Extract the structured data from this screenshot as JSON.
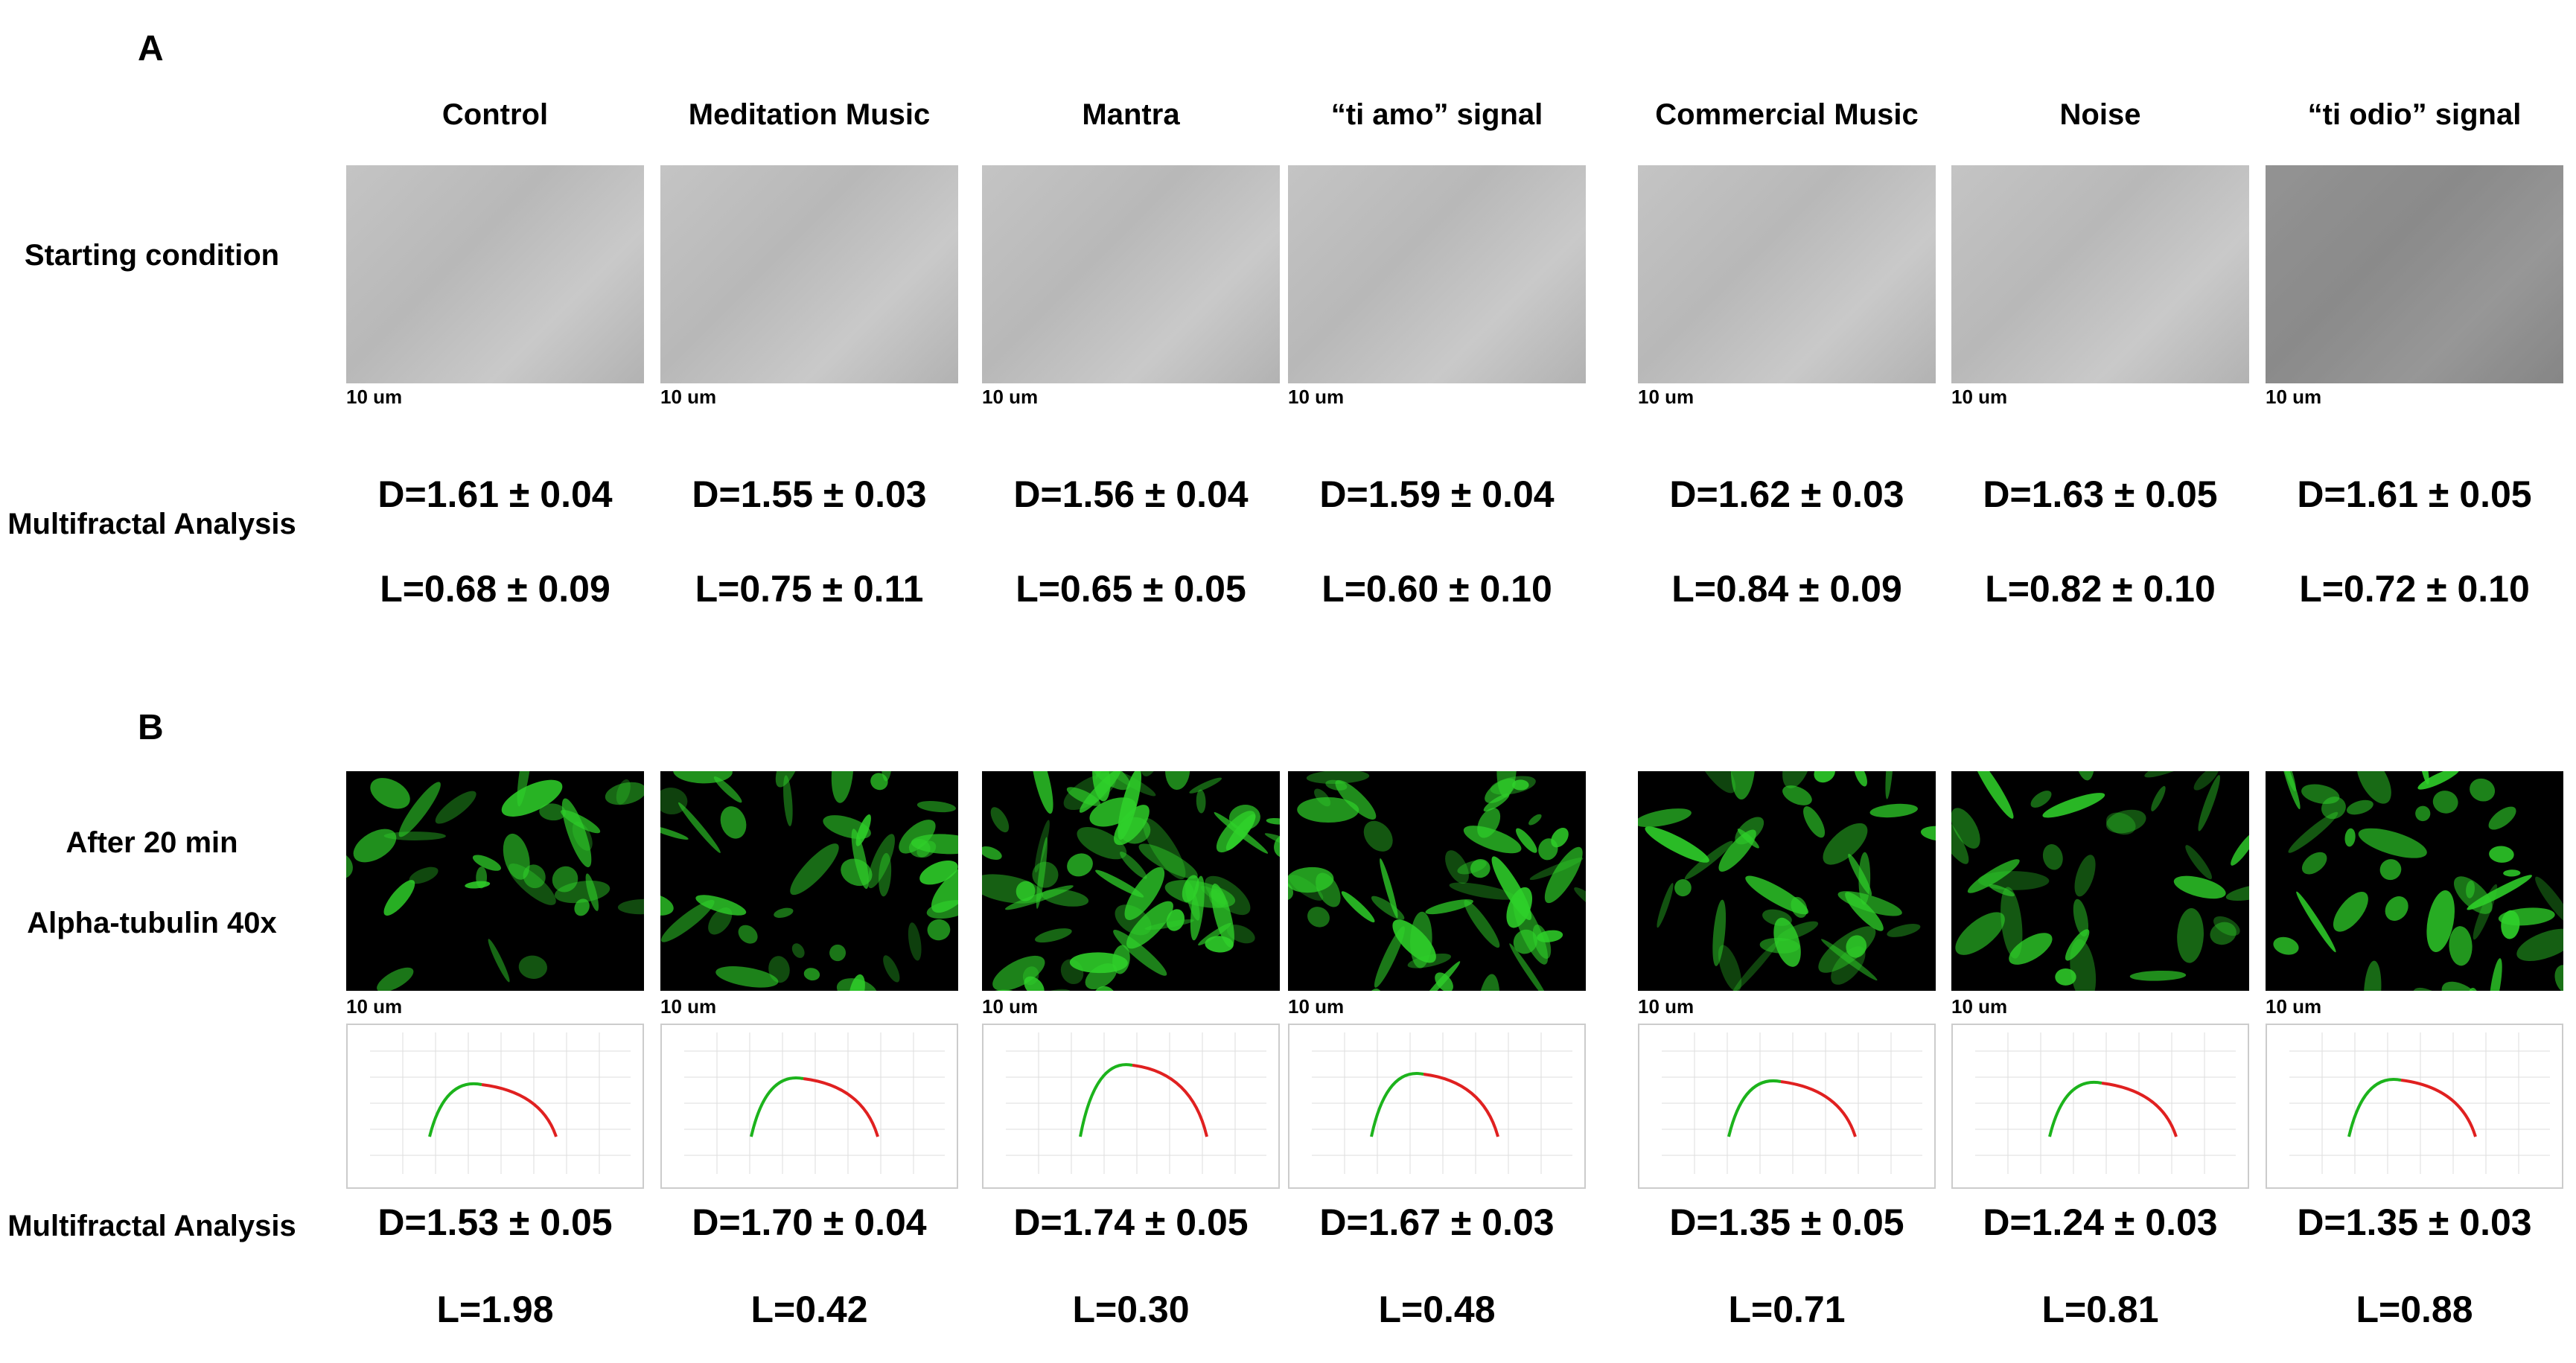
{
  "panel_a": {
    "label": "A",
    "row_labels": [
      "Starting condition",
      "Multifractal Analysis"
    ],
    "columns": [
      {
        "title": "Control",
        "scale_bar": "10 um",
        "D": "D=1.61 ± 0.04",
        "L": "L=0.68 ± 0.09"
      },
      {
        "title": "Meditation Music",
        "scale_bar": "10 um",
        "D": "D=1.55 ± 0.03",
        "L": "L=0.75 ± 0.11"
      },
      {
        "title": "Mantra",
        "scale_bar": "10 um",
        "D": "D=1.56 ± 0.04",
        "L": "L=0.65 ± 0.05"
      },
      {
        "title": "“ti amo” signal",
        "scale_bar": "10 um",
        "D": "D=1.59 ± 0.04",
        "L": "L=0.60 ± 0.10"
      },
      {
        "title": "Commercial Music",
        "scale_bar": "10 um",
        "D": "D=1.62 ± 0.03",
        "L": "L=0.84 ± 0.09"
      },
      {
        "title": "Noise",
        "scale_bar": "10 um",
        "D": "D=1.63 ± 0.05",
        "L": "L=0.82 ± 0.10"
      },
      {
        "title": "“ti odio” signal",
        "scale_bar": "10 um",
        "D": "D=1.61 ± 0.05",
        "L": "L=0.72 ± 0.10"
      }
    ]
  },
  "panel_b": {
    "label": "B",
    "row_labels": [
      "After 20 min",
      "Alpha-tubulin 40x",
      "Multifractal Analysis"
    ],
    "columns": [
      {
        "scale_bar": "10 um",
        "D": "D=1.53 ± 0.05",
        "L": "L=1.98"
      },
      {
        "scale_bar": "10 um",
        "D": "D=1.70 ± 0.04",
        "L": "L=0.42"
      },
      {
        "scale_bar": "10 um",
        "D": "D=1.74 ± 0.05",
        "L": "L=0.30"
      },
      {
        "scale_bar": "10 um",
        "D": "D=1.67 ± 0.03",
        "L": "L=0.48"
      },
      {
        "scale_bar": "10 um",
        "D": "D=1.35 ± 0.05",
        "L": "L=0.71"
      },
      {
        "scale_bar": "10 um",
        "D": "D=1.24 ± 0.03",
        "L": "L=0.81"
      },
      {
        "scale_bar": "10 um",
        "D": "D=1.35 ± 0.03",
        "L": "L=0.88"
      }
    ]
  }
}
